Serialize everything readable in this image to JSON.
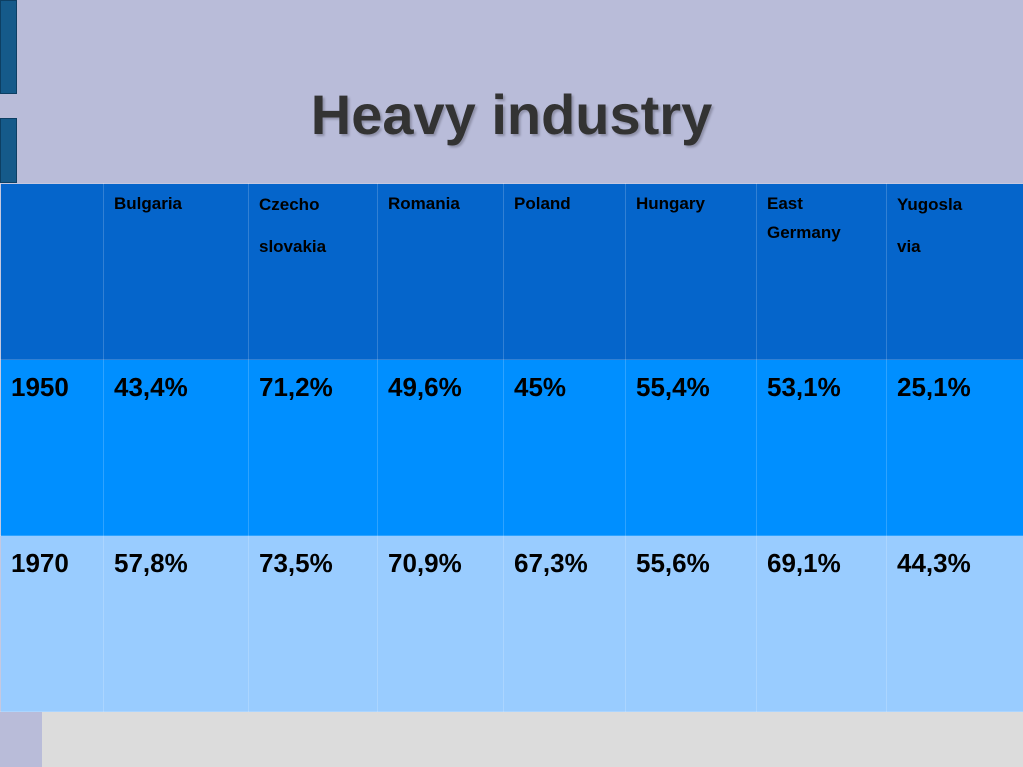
{
  "header": {
    "title": "Heavy industry"
  },
  "table": {
    "columns": [
      "Bulgaria",
      "Czecho\nslovakia",
      "Romania",
      "Poland",
      "Hungary",
      "East\nGermany",
      "Yugosla\nvia"
    ],
    "rows": [
      [
        "1950",
        "43,4%",
        "71,2%",
        "49,6%",
        "45%",
        "55,4%",
        "53,1%",
        "25,1%"
      ],
      [
        "1970",
        "57,8%",
        "73,5%",
        "70,9%",
        "67,3%",
        "55,6%",
        "69,1%",
        "44,3%"
      ]
    ]
  }
}
